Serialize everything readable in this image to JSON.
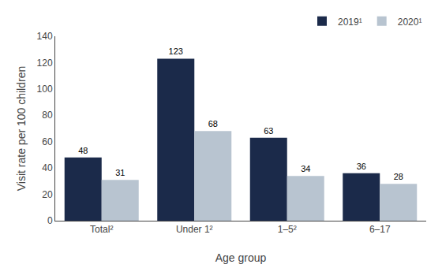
{
  "chart_data": {
    "type": "bar",
    "categories": [
      "Total²",
      "Under 1²",
      "1–5²",
      "6–17"
    ],
    "series": [
      {
        "name": "2019¹",
        "color": "#1b2a4a",
        "values": [
          48,
          123,
          63,
          36
        ]
      },
      {
        "name": "2020¹",
        "color": "#b8c4d0",
        "values": [
          31,
          68,
          34,
          28
        ]
      }
    ],
    "xlabel": "Age group",
    "ylabel": "Visit rate per 100 children",
    "ylim": [
      0,
      140
    ],
    "yticks": [
      0,
      20,
      40,
      60,
      80,
      100,
      120,
      140
    ],
    "grid": false,
    "legend": "upper right",
    "data_labels": true
  }
}
